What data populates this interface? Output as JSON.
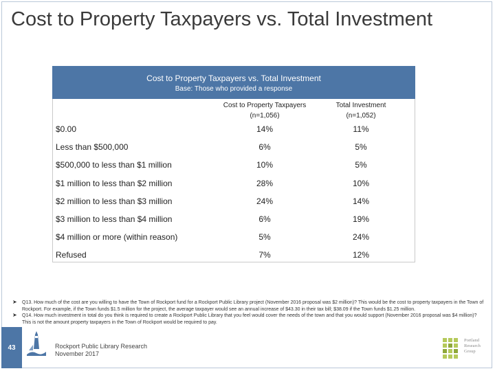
{
  "slide_title": "Cost to Property Taxpayers vs. Total Investment",
  "table": {
    "title": "Cost to Property Taxpayers vs. Total Investment",
    "subtitle": "Base: Those who provided a response",
    "columns": [
      {
        "label": "Cost to Property Taxpayers",
        "n": "(n=1,056)"
      },
      {
        "label": "Total Investment",
        "n": "(n=1,052)"
      }
    ],
    "rows": [
      {
        "label": "$0.00",
        "v1": "14%",
        "v2": "11%"
      },
      {
        "label": "Less than $500,000",
        "v1": "6%",
        "v2": "5%"
      },
      {
        "label": "$500,000 to less than $1 million",
        "v1": "10%",
        "v2": "5%"
      },
      {
        "label": "$1 million to less than $2 million",
        "v1": "28%",
        "v2": "10%"
      },
      {
        "label": "$2 million to less than $3 million",
        "v1": "24%",
        "v2": "14%"
      },
      {
        "label": "$3 million to less than $4 million",
        "v1": "6%",
        "v2": "19%"
      },
      {
        "label": "$4 million or more (within reason)",
        "v1": "5%",
        "v2": "24%"
      },
      {
        "label": "Refused",
        "v1": "7%",
        "v2": "12%"
      }
    ]
  },
  "notes": [
    "Q13. How much of the cost are you willing to have the Town of Rockport fund for a Rockport Public Library project (November 2016 proposal was $2 million)? This would be the cost to property taxpayers in the Town of Rockport. For example, if the Town funds $1.5 million for the project, the average taxpayer would see an annual increase of $43.30 in their tax bill; $38.09 if the Town funds $1.25 million.",
    "Q14. How much investment in total do you think is required to create a Rockport Public Library that you feel would cover the needs of the town and that you would support (November 2016 proposal was $4 million)? This is not the amount property taxpayers in the Town of Rockport would be required to pay."
  ],
  "footer": {
    "page_number": "43",
    "line1": "Rockport Public Library Research",
    "line2": "November 2017"
  },
  "logo": {
    "line1": "Portland",
    "line2": "Research",
    "line3": "Group"
  },
  "colors": {
    "header_blue": "#4d76a6",
    "logo_green": "#b5c95a"
  }
}
